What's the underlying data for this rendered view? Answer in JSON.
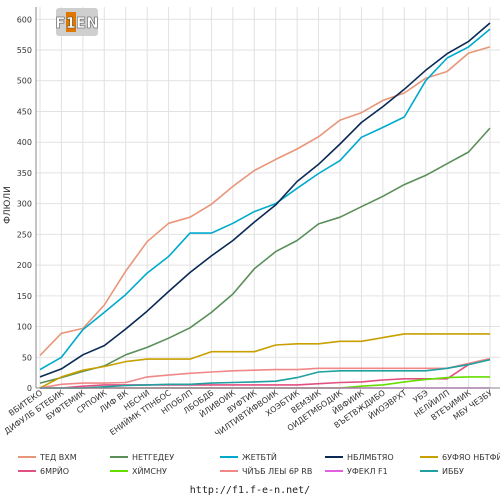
{
  "logo_text": "F1EN",
  "footer_url": "http://f1.f-e-n.net/",
  "chart_data": {
    "type": "line",
    "ylabel": "ФЛЮЛИ",
    "ylim": [
      0,
      620
    ],
    "yticks": [
      0,
      50,
      100,
      150,
      200,
      250,
      300,
      350,
      400,
      450,
      500,
      550,
      600
    ],
    "grid": true,
    "legend_position": "bottom",
    "categories": [
      "ВБИТЕКО",
      "ДИФУЛБ БТЕБИК",
      "БУФТЕМИК",
      "СРПОИК",
      "ЛИФ ВК",
      "НБСНИ",
      "ЕНИЙМК ТПНБОС",
      "НПОБЛП",
      "ЛБОБДБ",
      "ЙЛИВОИК",
      "ВУФТИК",
      "ЧИЛТИВТЙФВОИК",
      "ХОЭБТИК",
      "ВЕМЗИК",
      "ОИДЕТМБОДИК",
      "ЙВФИИК",
      "ВЪЕТВЖДИБО",
      "ЙИОЭВРХТ",
      "УБЭ",
      "НЕЛЙИЛП",
      "ВТЕЪИМИК",
      "МБУ ЧЕЗБУ"
    ],
    "series": [
      {
        "name": "ТЕД ВХМ",
        "color": "#e8967a",
        "values": [
          53,
          89,
          97,
          135,
          190,
          238,
          268,
          278,
          299,
          328,
          354,
          372,
          389,
          409,
          436,
          448,
          468,
          480,
          504,
          515,
          545,
          555
        ]
      },
      {
        "name": "НЕТГЕДЕУ",
        "color": "#5a8f5a",
        "values": [
          8,
          17,
          27,
          36,
          54,
          66,
          81,
          98,
          123,
          153,
          194,
          222,
          240,
          267,
          278,
          295,
          312,
          331,
          346,
          365,
          384,
          423
        ]
      },
      {
        "name": "ЖЕТБТЙ",
        "color": "#00aacc",
        "values": [
          30,
          50,
          95,
          123,
          152,
          187,
          214,
          252,
          252,
          268,
          287,
          300,
          325,
          349,
          370,
          408,
          424,
          441,
          500,
          537,
          555,
          584
        ]
      },
      {
        "name": "НБЛМБТЯО",
        "color": "#0a2a55",
        "values": [
          18,
          31,
          54,
          69,
          96,
          125,
          157,
          188,
          215,
          240,
          270,
          298,
          336,
          364,
          397,
          432,
          458,
          486,
          517,
          544,
          564,
          594
        ]
      },
      {
        "name": "6УФЯО НБТФЙО",
        "color": "#c8a000",
        "values": [
          0,
          18,
          29,
          35,
          43,
          47,
          47,
          47,
          59,
          59,
          59,
          70,
          72,
          72,
          76,
          76,
          82,
          88,
          88,
          88,
          88,
          88
        ]
      },
      {
        "name": "6МРЙО",
        "color": "#e05080",
        "values": [
          0,
          0,
          3,
          5,
          5,
          5,
          5,
          5,
          5,
          5,
          5,
          5,
          5,
          7,
          9,
          10,
          13,
          15,
          15,
          15,
          38,
          47
        ]
      },
      {
        "name": "ХЙМСНУ",
        "color": "#66dd00",
        "values": [
          0,
          0,
          0,
          0,
          0,
          0,
          0,
          0,
          0,
          0,
          0,
          0,
          0,
          0,
          0,
          3,
          5,
          10,
          14,
          17,
          18,
          18
        ]
      },
      {
        "name": "ЧЙЪБ ЛЕЫ 6Р RB",
        "color": "#f08888",
        "values": [
          0,
          6,
          8,
          8,
          9,
          18,
          21,
          24,
          26,
          28,
          29,
          30,
          30,
          32,
          32,
          32,
          32,
          32,
          32,
          32,
          40,
          48
        ]
      },
      {
        "name": "УФЕКЛ F1",
        "color": "#e060e0",
        "values": [
          0,
          0,
          0,
          0,
          0,
          0,
          0,
          0,
          0,
          0,
          0,
          0,
          0,
          0,
          0,
          0,
          0,
          0,
          0,
          0,
          0,
          0
        ]
      },
      {
        "name": "ИББУ",
        "color": "#20a0a0",
        "values": [
          0,
          0,
          0,
          2,
          4,
          5,
          6,
          6,
          8,
          9,
          10,
          11,
          17,
          26,
          28,
          28,
          28,
          28,
          28,
          32,
          38,
          46
        ]
      }
    ]
  }
}
